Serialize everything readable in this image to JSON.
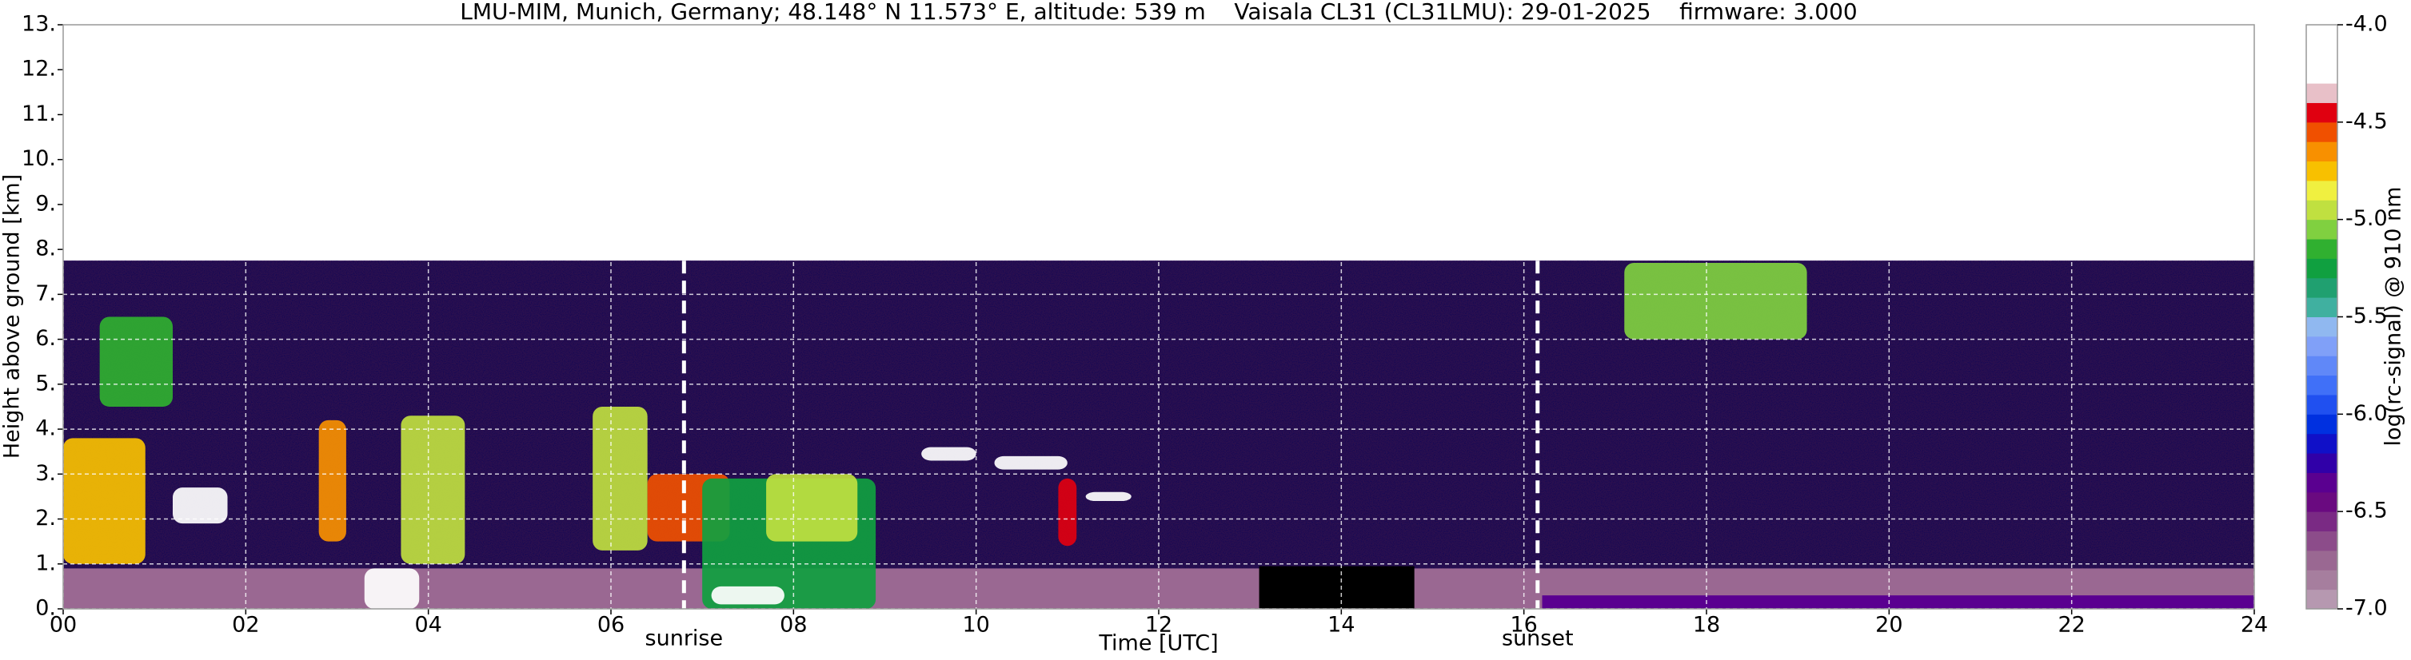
{
  "chart_data": {
    "type": "heatmap",
    "title": "LMU-MIM, Munich, Germany; 48.148° N 11.573° E, altitude: 539 m    Vaisala CL31 (CL31LMU): 29-01-2025    firmware: 3.000",
    "x_label": "Time [UTC]",
    "y_label": "Height above ground [km]",
    "xlim": [
      0,
      24
    ],
    "ylim": [
      0,
      13
    ],
    "xticks": [
      {
        "value": 0,
        "label": "00"
      },
      {
        "value": 2,
        "label": "02"
      },
      {
        "value": 4,
        "label": "04"
      },
      {
        "value": 6,
        "label": "06"
      },
      {
        "value": 8,
        "label": "08"
      },
      {
        "value": 10,
        "label": "10"
      },
      {
        "value": 12,
        "label": "12"
      },
      {
        "value": 14,
        "label": "14"
      },
      {
        "value": 16,
        "label": "16"
      },
      {
        "value": 18,
        "label": "18"
      },
      {
        "value": 20,
        "label": "20"
      },
      {
        "value": 22,
        "label": "22"
      },
      {
        "value": 24,
        "label": "24"
      }
    ],
    "yticks": [
      {
        "value": 0,
        "label": "0."
      },
      {
        "value": 1,
        "label": "1."
      },
      {
        "value": 2,
        "label": "2."
      },
      {
        "value": 3,
        "label": "3."
      },
      {
        "value": 4,
        "label": "4."
      },
      {
        "value": 5,
        "label": "5."
      },
      {
        "value": 6,
        "label": "6."
      },
      {
        "value": 7,
        "label": "7."
      },
      {
        "value": 8,
        "label": "8."
      },
      {
        "value": 9,
        "label": "9."
      },
      {
        "value": 10,
        "label": "10."
      },
      {
        "value": 11,
        "label": "11."
      },
      {
        "value": 12,
        "label": "12."
      },
      {
        "value": 13,
        "label": "13."
      }
    ],
    "grid": true,
    "markers": [
      {
        "x": 6.8,
        "label": "sunrise"
      },
      {
        "x": 16.15,
        "label": "sunset"
      }
    ],
    "colorbar": {
      "label": "log(rc-signal) @ 910 nm",
      "clim": [
        -7.0,
        -4.0
      ],
      "ticks": [
        {
          "value": -7.0,
          "label": "-7.0"
        },
        {
          "value": -6.5,
          "label": "-6.5"
        },
        {
          "value": -6.0,
          "label": "-6.0"
        },
        {
          "value": -5.5,
          "label": "-5.5"
        },
        {
          "value": -5.0,
          "label": "-5.0"
        },
        {
          "value": -4.5,
          "label": "-4.5"
        },
        {
          "value": -4.0,
          "label": "-4.0"
        }
      ],
      "colors": [
        "#b698b0",
        "#a67e9e",
        "#9a6892",
        "#8c4c8a",
        "#7a2a84",
        "#6a0a80",
        "#5a0090",
        "#3000a8",
        "#1010c8",
        "#0030e0",
        "#2050f0",
        "#4070f8",
        "#6088f8",
        "#80a0f8",
        "#90b8f0",
        "#40b0a0",
        "#20a070",
        "#10a040",
        "#30b030",
        "#80d040",
        "#c0e040",
        "#f0f040",
        "#f8c000",
        "#f89000",
        "#f05000",
        "#e00010",
        "#e8c0c8",
        "#ffffff",
        "#ffffff",
        "#ffffff"
      ]
    },
    "layers": [
      {
        "x": [
          0,
          24
        ],
        "y": [
          0,
          7.75
        ],
        "value": -6.45
      },
      {
        "x": [
          0,
          24
        ],
        "y": [
          0,
          0.9
        ],
        "value": -6.75
      },
      {
        "x": [
          16.2,
          24
        ],
        "y": [
          0,
          0.3
        ],
        "value": -6.35
      },
      {
        "x": [
          0,
          0.9
        ],
        "y": [
          1.0,
          3.8
        ],
        "value": -4.8
      },
      {
        "x": [
          0.4,
          1.2
        ],
        "y": [
          4.5,
          6.5
        ],
        "value": -5.2
      },
      {
        "x": [
          1.2,
          1.8
        ],
        "y": [
          1.9,
          2.7
        ],
        "value": -4.3
      },
      {
        "x": [
          2.8,
          3.1
        ],
        "y": [
          1.5,
          4.2
        ],
        "value": -4.7
      },
      {
        "x": [
          3.3,
          3.9
        ],
        "y": [
          0,
          0.9
        ],
        "value": -4.3
      },
      {
        "x": [
          3.7,
          4.4
        ],
        "y": [
          1.0,
          4.3
        ],
        "value": -4.9
      },
      {
        "x": [
          5.8,
          6.4
        ],
        "y": [
          1.3,
          4.5
        ],
        "value": -4.9
      },
      {
        "x": [
          6.4,
          7.3
        ],
        "y": [
          1.5,
          3.0
        ],
        "value": -4.6
      },
      {
        "x": [
          7.0,
          8.9
        ],
        "y": [
          0,
          2.9
        ],
        "value": -5.3
      },
      {
        "x": [
          7.7,
          8.7
        ],
        "y": [
          1.5,
          3.0
        ],
        "value": -4.9
      },
      {
        "x": [
          7.1,
          7.9
        ],
        "y": [
          0.1,
          0.5
        ],
        "value": -4.3
      },
      {
        "x": [
          9.4,
          10.0
        ],
        "y": [
          3.3,
          3.6
        ],
        "value": -4.3
      },
      {
        "x": [
          10.2,
          11.0
        ],
        "y": [
          3.1,
          3.4
        ],
        "value": -4.3
      },
      {
        "x": [
          10.9,
          11.1
        ],
        "y": [
          1.4,
          2.9
        ],
        "value": -4.5
      },
      {
        "x": [
          11.2,
          11.7
        ],
        "y": [
          2.4,
          2.6
        ],
        "value": -4.3
      },
      {
        "x": [
          17.1,
          19.1
        ],
        "y": [
          6.0,
          7.7
        ],
        "value": -5.1
      }
    ],
    "no_data": [
      {
        "x": [
          13.1,
          14.8
        ],
        "y": [
          0,
          0.95
        ]
      }
    ]
  }
}
